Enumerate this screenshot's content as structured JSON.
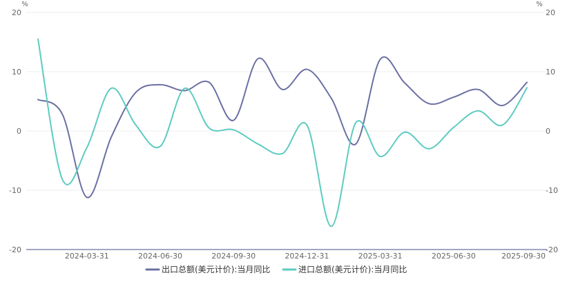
{
  "chart_data": {
    "type": "line",
    "y_unit_left": "%",
    "y_unit_right": "%",
    "ylim": [
      -20,
      20
    ],
    "y_ticks": [
      20,
      10,
      0,
      -10,
      -20
    ],
    "x_tick_labels": [
      "2024-03-31",
      "2024-06-30",
      "2024-09-30",
      "2024-12-31",
      "2025-03-31",
      "2025-06-30",
      "2025-09-30"
    ],
    "x": [
      "2024-01",
      "2024-02",
      "2024-03",
      "2024-04",
      "2024-05",
      "2024-06",
      "2024-07",
      "2024-08",
      "2024-09",
      "2024-10",
      "2024-11",
      "2024-12",
      "2025-01",
      "2025-02",
      "2025-03",
      "2025-04",
      "2025-05",
      "2025-06",
      "2025-07",
      "2025-08",
      "2025-09"
    ],
    "grid": true,
    "legend_position": "bottom",
    "series": [
      {
        "name": "出口总额(美元计价):当月同比",
        "color": "#6b6fa3",
        "values": [
          5.3,
          2.8,
          -11.2,
          -1.0,
          6.5,
          7.8,
          6.8,
          8.2,
          1.8,
          12.2,
          7.0,
          10.4,
          5.5,
          -2.2,
          12.1,
          8.1,
          4.6,
          5.7,
          7.0,
          4.3,
          8.2
        ]
      },
      {
        "name": "进口总额(美元计价):当月同比",
        "color": "#5ccbc0",
        "values": [
          15.5,
          -8.2,
          -2.8,
          7.2,
          1.0,
          -2.6,
          7.2,
          0.5,
          0.2,
          -2.2,
          -3.8,
          1.0,
          -16.1,
          1.4,
          -4.3,
          -0.2,
          -3.0,
          0.6,
          3.4,
          1.0,
          7.3
        ]
      }
    ]
  }
}
